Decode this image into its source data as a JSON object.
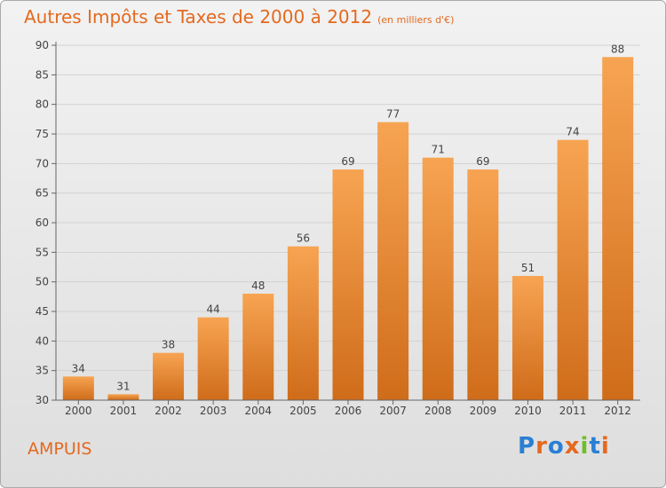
{
  "header": {
    "title": "Autres Impôts et Taxes de 2000 à 2012",
    "subtitle": "(en milliers d'€)"
  },
  "footer": {
    "city": "AMPUIS",
    "logo_text": "Proxiti"
  },
  "colors": {
    "accent": "#e4691f",
    "bar_top": "#f7a452",
    "bar_bottom": "#cf6c1a"
  },
  "chart_data": {
    "type": "bar",
    "title": "Autres Impôts et Taxes de 2000 à 2012",
    "subtitle": "(en milliers d'€)",
    "categories": [
      "2000",
      "2001",
      "2002",
      "2003",
      "2004",
      "2005",
      "2006",
      "2007",
      "2008",
      "2009",
      "2010",
      "2011",
      "2012"
    ],
    "values": [
      34,
      31,
      38,
      44,
      48,
      56,
      69,
      77,
      71,
      69,
      51,
      74,
      88
    ],
    "ylim": [
      30,
      90
    ],
    "yticks": [
      30,
      35,
      40,
      45,
      50,
      55,
      60,
      65,
      70,
      75,
      80,
      85,
      90
    ],
    "grid": true
  }
}
